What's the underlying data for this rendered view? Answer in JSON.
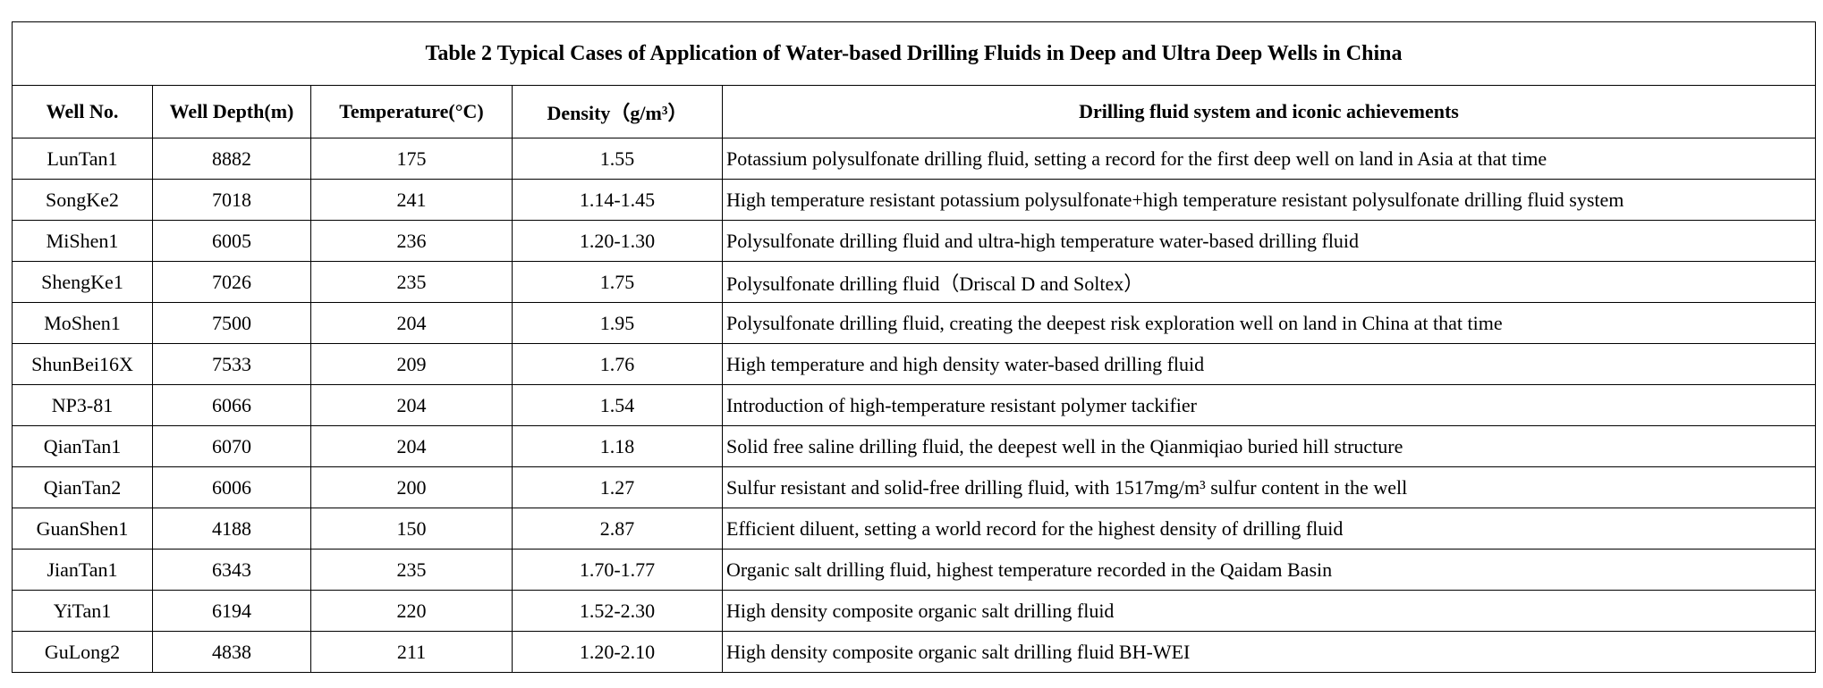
{
  "title": "Table 2 Typical Cases of Application of Water-based Drilling Fluids in Deep and Ultra Deep Wells in China",
  "headers": [
    "Well No.",
    "Well Depth(m)",
    "Temperature(°C)",
    "Density（g/m³）",
    "Drilling fluid system and iconic achievements"
  ],
  "rows": [
    [
      "LunTan1",
      "8882",
      "175",
      "1.55",
      "Potassium polysulfonate drilling fluid, setting a record for the first deep well on land in Asia at that time"
    ],
    [
      "SongKe2",
      "7018",
      "241",
      "1.14-1.45",
      "High temperature resistant potassium polysulfonate+high temperature resistant polysulfonate drilling fluid system"
    ],
    [
      "MiShen1",
      "6005",
      "236",
      "1.20-1.30",
      "Polysulfonate drilling fluid and ultra-high temperature water-based drilling fluid"
    ],
    [
      "ShengKe1",
      "7026",
      "235",
      "1.75",
      "Polysulfonate drilling fluid（Driscal D and Soltex）"
    ],
    [
      "MoShen1",
      "7500",
      "204",
      "1.95",
      "Polysulfonate drilling fluid, creating the deepest risk exploration well on land in China at that time"
    ],
    [
      "ShunBei16X",
      "7533",
      "209",
      "1.76",
      "High temperature and high density water-based drilling fluid"
    ],
    [
      "NP3-81",
      "6066",
      "204",
      "1.54",
      "Introduction of high-temperature resistant polymer tackifier"
    ],
    [
      "QianTan1",
      "6070",
      "204",
      "1.18",
      "Solid free saline drilling fluid, the deepest well in the Qianmiqiao buried hill structure"
    ],
    [
      "QianTan2",
      "6006",
      "200",
      "1.27",
      "Sulfur resistant and solid-free drilling fluid, with 1517mg/m³ sulfur content in the well"
    ],
    [
      "GuanShen1",
      "4188",
      "150",
      "2.87",
      "Efficient diluent, setting a world record for the highest density of drilling fluid"
    ],
    [
      "JianTan1",
      "6343",
      "235",
      "1.70-1.77",
      "Organic salt drilling fluid, highest temperature recorded in the Qaidam Basin"
    ],
    [
      "YiTan1",
      "6194",
      "220",
      "1.52-2.30",
      "High density composite organic salt drilling fluid"
    ],
    [
      "GuLong2",
      "4838",
      "211",
      "1.20-2.10",
      "High density composite organic salt drilling fluid BH-WEI"
    ]
  ]
}
